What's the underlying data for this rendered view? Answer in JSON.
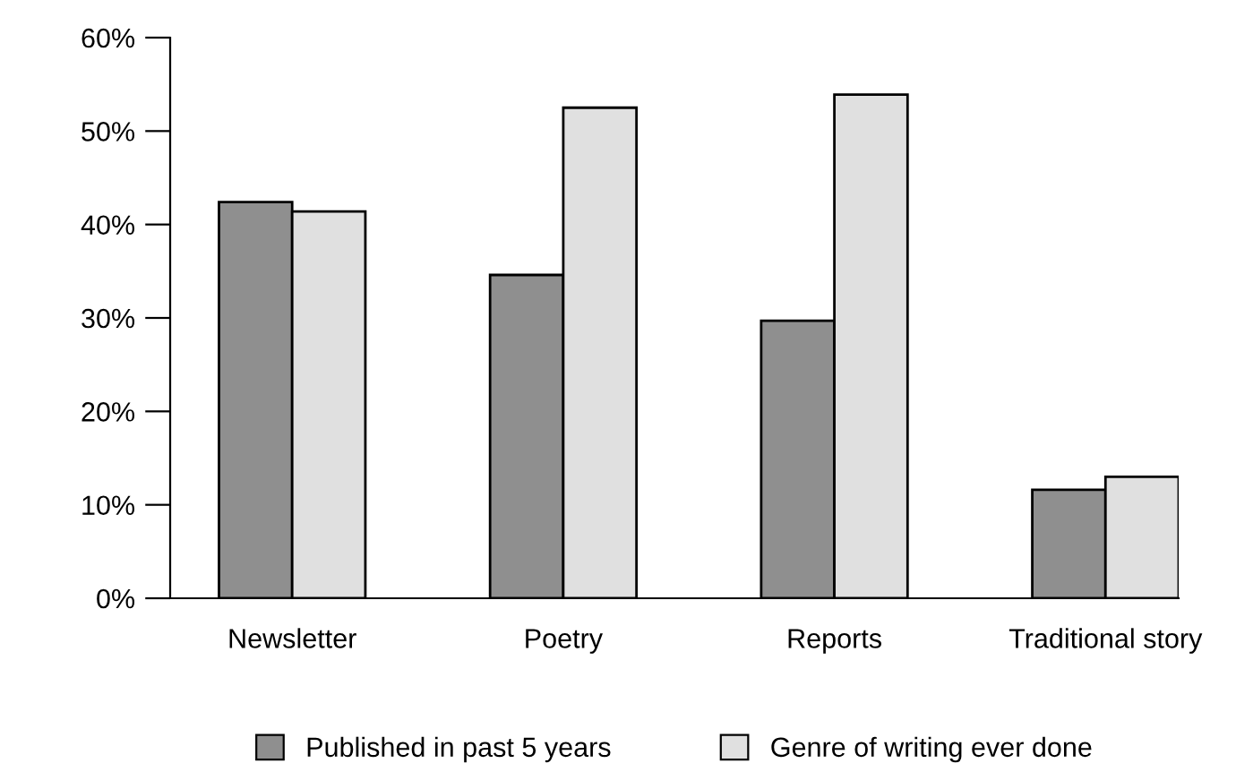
{
  "chart_data": {
    "type": "bar",
    "categories": [
      "Newsletter",
      "Poetry",
      "Reports",
      "Traditional story"
    ],
    "series": [
      {
        "name": "Published in past 5 years",
        "color": "#8f8f8f",
        "values": [
          42.4,
          34.6,
          29.7,
          11.6
        ]
      },
      {
        "name": "Genre of writing ever done",
        "color": "#e0e0e0",
        "values": [
          41.4,
          52.5,
          53.9,
          13.0
        ]
      }
    ],
    "ylim": [
      0,
      60
    ],
    "yticks": [
      {
        "value": 0,
        "label": "0%"
      },
      {
        "value": 10,
        "label": "10%"
      },
      {
        "value": 20,
        "label": "20%"
      },
      {
        "value": 30,
        "label": "30%"
      },
      {
        "value": 40,
        "label": "40%"
      },
      {
        "value": 50,
        "label": "50%"
      },
      {
        "value": 60,
        "label": "60%"
      }
    ],
    "grid": false,
    "legend": "bottom"
  }
}
